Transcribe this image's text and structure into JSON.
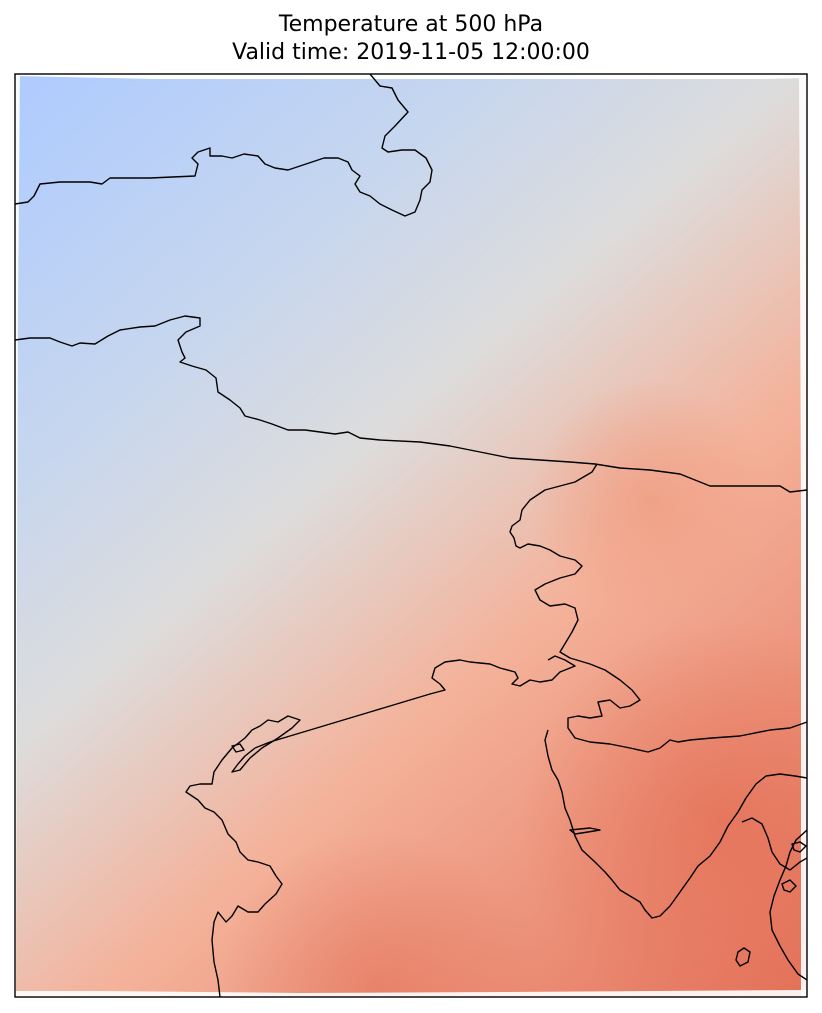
{
  "title": "Temperature at 500 hPa",
  "subtitle": "Valid time: 2019-11-05 12:00:00",
  "colormap": {
    "name": "coolwarm",
    "cold": "#aecbff",
    "neutral": "#dddcdc",
    "warm": "#f4b29a",
    "hot": "#e4715a"
  },
  "coastline_color": "#000000",
  "frame_color": "#000000"
}
